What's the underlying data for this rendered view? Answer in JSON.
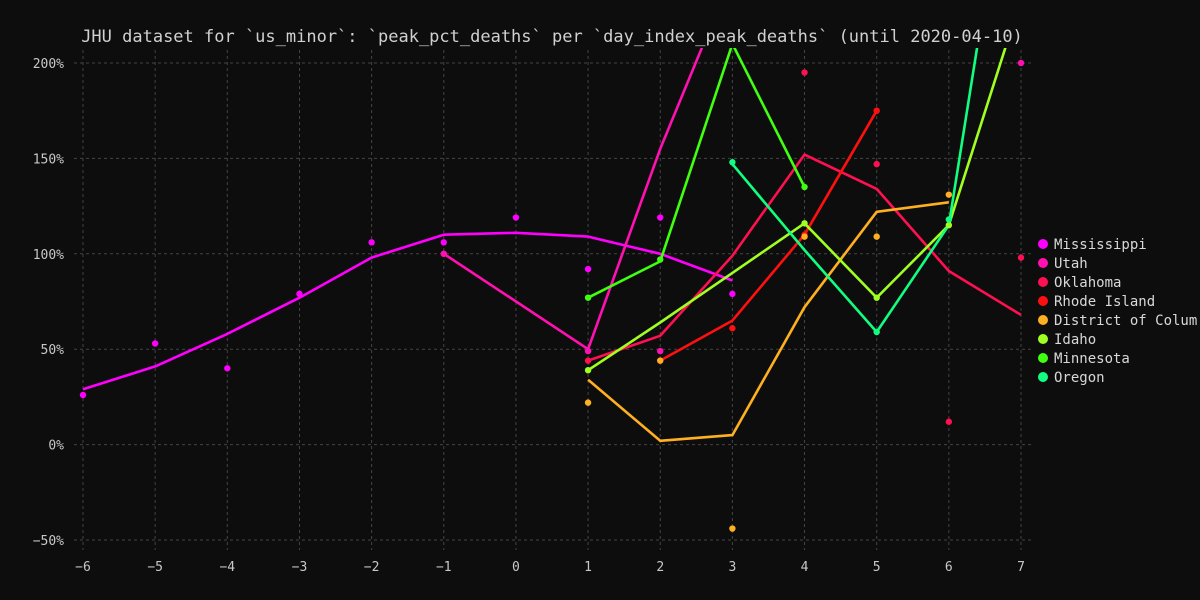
{
  "chart_data": {
    "type": "line",
    "title": "JHU dataset for `us_minor`: `peak_pct_deaths` per `day_index_peak_deaths` (until 2020-04-10)",
    "xlabel": "",
    "ylabel": "",
    "xlim": [
      -6,
      7
    ],
    "ylim": [
      -52,
      205
    ],
    "x_ticks": [
      -6,
      -5,
      -4,
      -3,
      -2,
      -1,
      0,
      1,
      2,
      3,
      4,
      5,
      6,
      7
    ],
    "y_ticks": [
      -50,
      0,
      50,
      100,
      150,
      200
    ],
    "y_tick_suffix": "%",
    "grid": true,
    "legend_position": "right",
    "series": [
      {
        "name": "Mississippi",
        "color": "#ff00ff",
        "line": [
          [
            -6,
            29
          ],
          [
            -5,
            41
          ],
          [
            -4,
            58
          ],
          [
            -3,
            77
          ],
          [
            -2,
            98
          ],
          [
            -1,
            110
          ],
          [
            0,
            111
          ],
          [
            1,
            109
          ],
          [
            2,
            100
          ],
          [
            3,
            86
          ]
        ],
        "points": [
          [
            -6,
            26
          ],
          [
            -5,
            53
          ],
          [
            -4,
            40
          ],
          [
            -3,
            79
          ],
          [
            -2,
            106
          ],
          [
            -1,
            106
          ],
          [
            0,
            119
          ],
          [
            1,
            92
          ],
          [
            2,
            119
          ],
          [
            3,
            79
          ]
        ]
      },
      {
        "name": "Utah",
        "color": "#ff10b0",
        "line": [
          [
            -1,
            100
          ],
          [
            1,
            50
          ],
          [
            2,
            155
          ],
          [
            2.6,
            210
          ]
        ],
        "points": [
          [
            -1,
            100
          ],
          [
            1,
            49
          ],
          [
            2,
            49
          ],
          [
            7,
            200
          ]
        ]
      },
      {
        "name": "Oklahoma",
        "color": "#ff1050",
        "line": [
          [
            1,
            44
          ],
          [
            2,
            57
          ],
          [
            3,
            99
          ],
          [
            4,
            152
          ],
          [
            5,
            134
          ],
          [
            6,
            91
          ],
          [
            7,
            68
          ]
        ],
        "points": [
          [
            1,
            44
          ],
          [
            4,
            195
          ],
          [
            5,
            147
          ],
          [
            6,
            12
          ],
          [
            7,
            98
          ]
        ]
      },
      {
        "name": "Rhode Island",
        "color": "#ff1010",
        "line": [
          [
            2,
            44
          ],
          [
            3,
            65
          ],
          [
            4,
            110
          ],
          [
            5,
            175
          ]
        ],
        "points": [
          [
            2,
            44
          ],
          [
            3,
            61
          ],
          [
            4,
            110
          ],
          [
            5,
            175
          ]
        ]
      },
      {
        "name": "District of Columbia",
        "color": "#ffb020",
        "line": [
          [
            1,
            34
          ],
          [
            2,
            2
          ],
          [
            3,
            5
          ],
          [
            4,
            72
          ],
          [
            5,
            122
          ],
          [
            6,
            127
          ]
        ],
        "points": [
          [
            1,
            22
          ],
          [
            2,
            44
          ],
          [
            3,
            -44
          ],
          [
            4,
            109
          ],
          [
            5,
            109
          ],
          [
            6,
            131
          ]
        ]
      },
      {
        "name": "Idaho",
        "color": "#a0ff20",
        "line": [
          [
            1,
            39
          ],
          [
            2,
            64
          ],
          [
            3,
            90
          ],
          [
            4,
            116
          ],
          [
            5,
            77
          ],
          [
            6,
            115
          ],
          [
            6.8,
            210
          ]
        ],
        "points": [
          [
            1,
            39
          ],
          [
            4,
            116
          ],
          [
            5,
            77
          ],
          [
            6,
            115
          ]
        ]
      },
      {
        "name": "Minnesota",
        "color": "#40ff10",
        "line": [
          [
            1,
            77
          ],
          [
            2,
            96
          ],
          [
            3,
            210
          ],
          [
            4,
            135
          ]
        ],
        "points": [
          [
            1,
            77
          ],
          [
            2,
            97
          ],
          [
            4,
            135
          ]
        ]
      },
      {
        "name": "Oregon",
        "color": "#10ff80",
        "line": [
          [
            3,
            147
          ],
          [
            4,
            102
          ],
          [
            5,
            59
          ],
          [
            6,
            115
          ],
          [
            6.4,
            210
          ]
        ],
        "points": [
          [
            3,
            148
          ],
          [
            5,
            59
          ],
          [
            6,
            118
          ]
        ]
      }
    ]
  },
  "legend_labels": [
    "Mississippi",
    "Utah",
    "Oklahoma",
    "Rhode Island",
    "District of Colum",
    "Idaho",
    "Minnesota",
    "Oregon"
  ]
}
